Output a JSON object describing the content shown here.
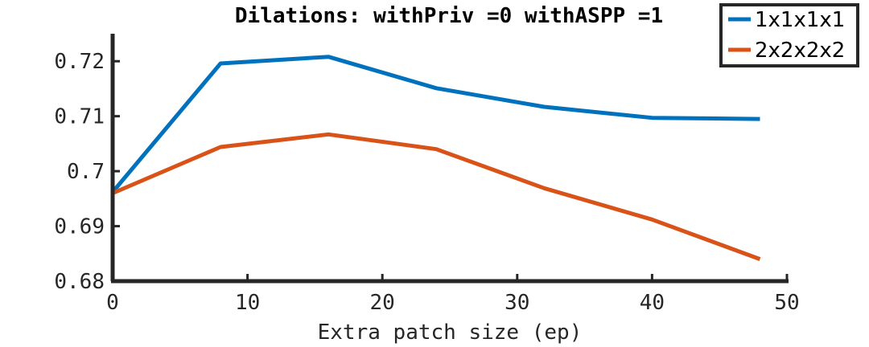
{
  "chart_data": {
    "type": "line",
    "title": "Dilations: withPriv =0 withASPP =1",
    "xlabel": "Extra patch size (ep)",
    "ylabel": "",
    "xlim": [
      0,
      50
    ],
    "ylim": [
      0.68,
      0.725
    ],
    "xticks": [
      "0",
      "10",
      "20",
      "30",
      "40",
      "50"
    ],
    "yticks": [
      "0.68",
      "0.69",
      "0.7",
      "0.71",
      "0.72"
    ],
    "grid": false,
    "legend_position": "top-right",
    "x": [
      0,
      8,
      16,
      24,
      32,
      40,
      48
    ],
    "series": [
      {
        "name": "1x1x1x1",
        "color": "#0072BD",
        "values": [
          0.6962,
          0.7196,
          0.7208,
          0.7151,
          0.7117,
          0.7097,
          0.7095
        ]
      },
      {
        "name": "2x2x2x2",
        "color": "#D95319",
        "values": [
          0.696,
          0.7044,
          0.7067,
          0.704,
          0.6969,
          0.6912,
          0.684
        ]
      }
    ]
  }
}
